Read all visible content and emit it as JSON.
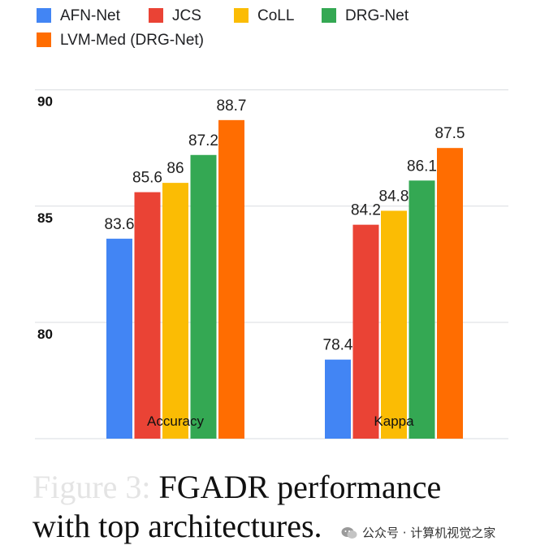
{
  "chart_data": {
    "type": "bar",
    "categories": [
      "Accuracy",
      "Kappa"
    ],
    "series": [
      {
        "name": "AFN-Net",
        "color": "#4285f4",
        "values": [
          83.6,
          78.4
        ],
        "labels": [
          "83.6",
          "78.4"
        ]
      },
      {
        "name": "JCS",
        "color": "#ea4335",
        "values": [
          85.6,
          84.2
        ],
        "labels": [
          "85.6",
          "84.2"
        ]
      },
      {
        "name": "CoLL",
        "color": "#fbbc04",
        "values": [
          86.0,
          84.8
        ],
        "labels": [
          "86",
          "84.8"
        ]
      },
      {
        "name": "DRG-Net",
        "color": "#34a853",
        "values": [
          87.2,
          86.1
        ],
        "labels": [
          "87.2",
          "86.1"
        ]
      },
      {
        "name": "LVM-Med (DRG-Net)",
        "color": "#ff6d01",
        "values": [
          88.7,
          87.5
        ],
        "labels": [
          "88.7",
          "87.5"
        ]
      }
    ],
    "yticks": [
      80,
      85,
      90
    ],
    "ytick_labels": [
      "80",
      "85",
      "90"
    ],
    "ylim": [
      75,
      91
    ],
    "grid": true,
    "legend": "top-left"
  },
  "caption": {
    "line1_faded": "Figure 3:",
    "line1": "FGADR performance",
    "line2": "with top architectures."
  },
  "watermark": {
    "text": "公众号 · 计算机视觉之家"
  }
}
